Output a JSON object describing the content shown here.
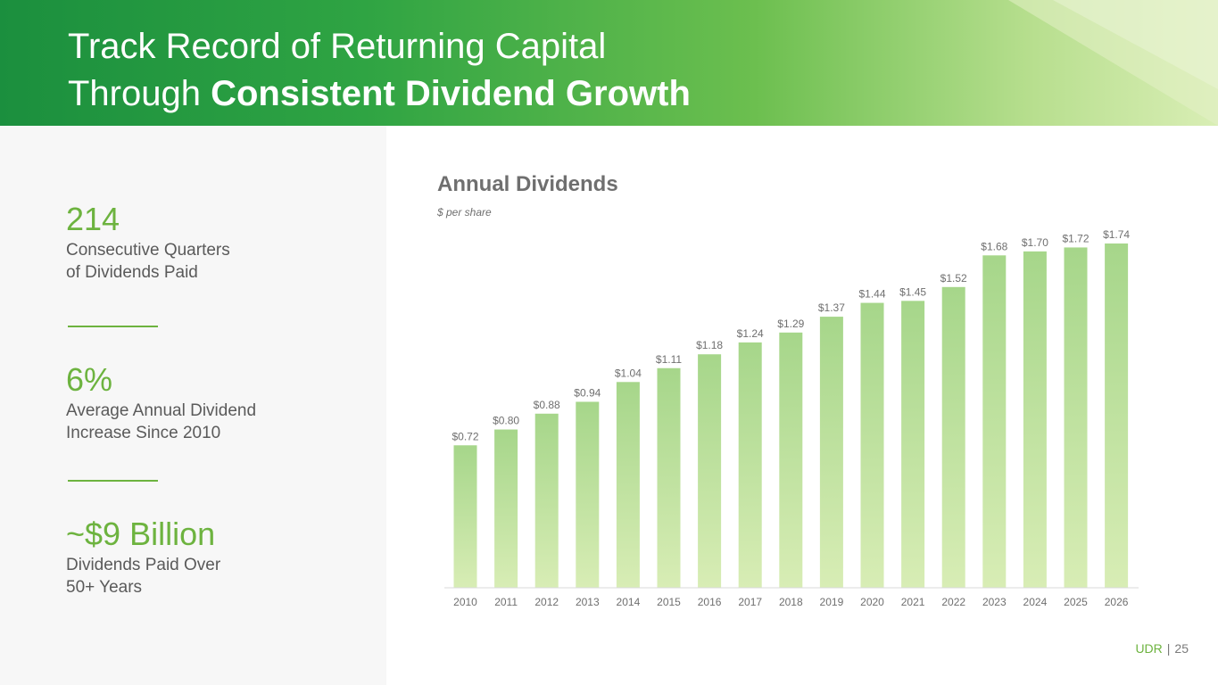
{
  "header": {
    "title_line1": "Track Record of Returning Capital",
    "title_line2_prefix": "Through ",
    "title_line2_bold": "Consistent Dividend Growth"
  },
  "stats": [
    {
      "value": "214",
      "desc": "Consecutive Quarters\nof Dividends Paid"
    },
    {
      "value": "6%",
      "desc": "Average Annual Dividend\nIncrease Since 2010"
    },
    {
      "value": "~$9 Billion",
      "desc": "Dividends Paid Over\n50+ Years"
    }
  ],
  "footer": {
    "brand": "UDR",
    "separator": "|",
    "page_number": "25"
  },
  "colors": {
    "accent": "#6db33f",
    "bar_top": "#a6d68a",
    "bar_bottom": "#d8edb5"
  },
  "chart_data": {
    "type": "bar",
    "title": "Annual Dividends",
    "subtitle": "$ per share",
    "categories": [
      "2010",
      "2011",
      "2012",
      "2013",
      "2014",
      "2015",
      "2016",
      "2017",
      "2018",
      "2019",
      "2020",
      "2021",
      "2022",
      "2023",
      "2024",
      "2025",
      "2026"
    ],
    "values": [
      0.72,
      0.8,
      0.88,
      0.94,
      1.04,
      1.11,
      1.18,
      1.24,
      1.29,
      1.37,
      1.44,
      1.45,
      1.52,
      1.68,
      1.7,
      1.72,
      1.74
    ],
    "data_labels": [
      "$0.72",
      "$0.80",
      "$0.88",
      "$0.94",
      "$1.04",
      "$1.11",
      "$1.18",
      "$1.24",
      "$1.29",
      "$1.37",
      "$1.44",
      "$1.45",
      "$1.52",
      "$1.68",
      "$1.70",
      "$1.72",
      "$1.74"
    ],
    "ylim": [
      0,
      1.74
    ],
    "grid": false,
    "legend": "none"
  }
}
